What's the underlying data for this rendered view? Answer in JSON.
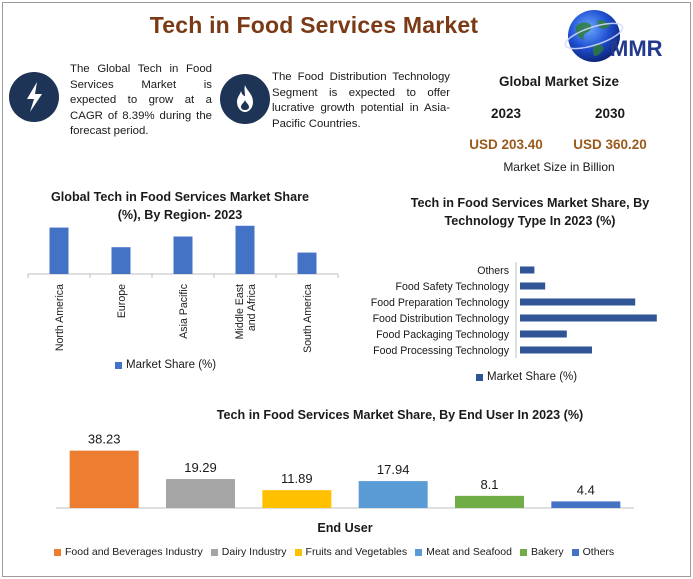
{
  "header": {
    "title": "Tech in Food Services Market",
    "logo_text": "MMR"
  },
  "info": {
    "growth_text": "The Global Tech in Food Services Market is expected to grow at a CAGR of 8.39% during the forecast period.",
    "segment_text": "The Food Distribution Technology Segment is expected to offer lucrative growth potential in Asia-Pacific Countries."
  },
  "market_size": {
    "heading": "Global Market Size",
    "year_a": "2023",
    "year_b": "2030",
    "value_a": "USD 203.40",
    "value_b": "USD 360.20",
    "unit": "Market Size in Billion"
  },
  "colors": {
    "title": "#7b3a16",
    "accent_blue": "#4472c4",
    "dark_blue": "#2f5597",
    "navy_icon": "#1e3457",
    "value_brown": "#9a5a1c"
  },
  "chart_data": [
    {
      "type": "bar",
      "title": "Global Tech in Food Services Market Share (%), By Region- 2023",
      "categories": [
        "North America",
        "Europe",
        "Asia Pacific",
        "Middle East and Africa",
        "South America"
      ],
      "series": [
        {
          "name": "Market Share (%)",
          "values": [
            26,
            15,
            21,
            27,
            12
          ]
        }
      ],
      "ylim": [
        0,
        28
      ],
      "legend": "bottom",
      "grid": false
    },
    {
      "type": "bar",
      "orientation": "horizontal",
      "title": "Tech in Food Services Market Share, By Technology Type In 2023 (%)",
      "categories": [
        "Others",
        "Food Safety Technology",
        "Food Preparation Technology",
        "Food Distribution Technology",
        "Food Packaging Technology",
        "Food Processing Technology"
      ],
      "series": [
        {
          "name": "Market Share (%)",
          "values": [
            4,
            7,
            32,
            38,
            13,
            20
          ]
        }
      ],
      "xlim": [
        0,
        40
      ],
      "legend": "bottom",
      "grid": false
    },
    {
      "type": "bar",
      "title": "Tech in Food Services Market Share, By End User In 2023 (%)",
      "xlabel": "End User",
      "categories": [
        "Food and Beverages Industry",
        "Dairy Industry",
        "Fruits and Vegetables",
        "Meat and Seafood",
        "Bakery",
        "Others"
      ],
      "values": [
        38.23,
        19.29,
        11.89,
        17.94,
        8.1,
        4.4
      ],
      "labels": [
        "38.23",
        "19.29",
        "11.89",
        "17.94",
        "8.1",
        "4.4"
      ],
      "colors": [
        "#ed7d31",
        "#a5a5a5",
        "#ffc000",
        "#5b9bd5",
        "#70ad47",
        "#4472c4"
      ],
      "ylim": [
        0,
        40
      ],
      "legend": "bottom",
      "grid": false
    }
  ]
}
